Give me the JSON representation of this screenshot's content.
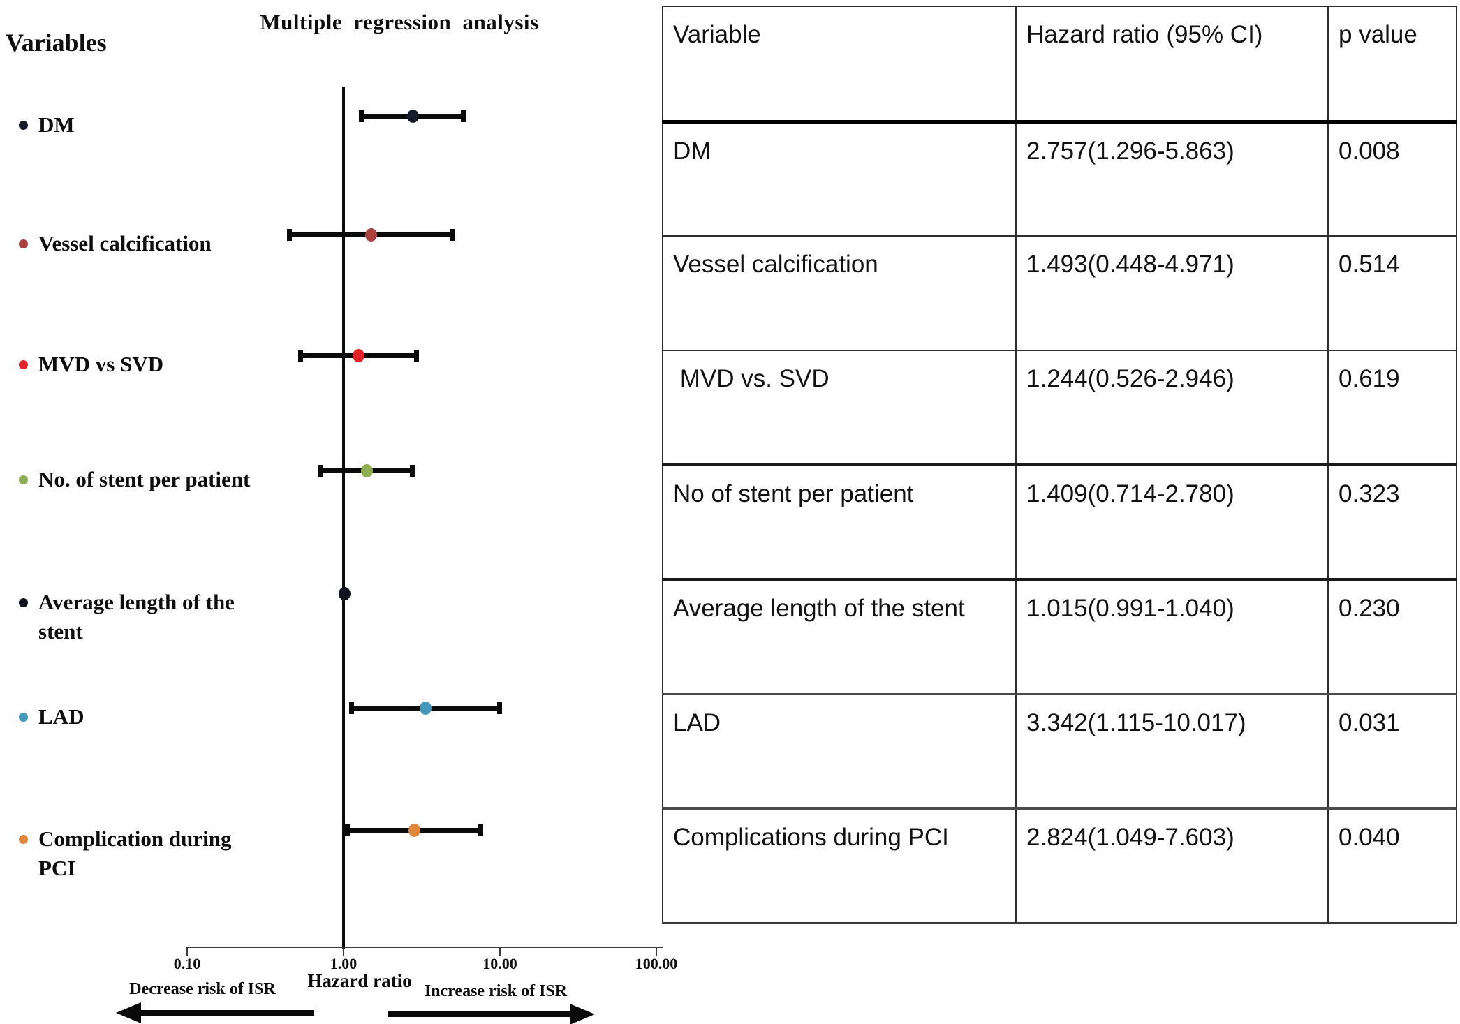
{
  "chart_data": {
    "type": "forest",
    "title": "Multiple regression analysis",
    "left_heading": "Variables",
    "xlabel": "Hazard ratio",
    "x_scale": "log",
    "xlim": [
      0.1,
      100
    ],
    "x_ticks": [
      0.1,
      1.0,
      10.0,
      100.0
    ],
    "x_tick_labels": [
      "0.10",
      "1.00",
      "10.00",
      "100.00"
    ],
    "ref_line": 1.0,
    "decrease_label": "Decrease risk of ISR",
    "increase_label": "Increase risk of ISR",
    "rows": [
      {
        "label_lines": [
          "DM"
        ],
        "hr": 2.757,
        "ci_lo": 1.296,
        "ci_hi": 5.863,
        "color": "#141b29"
      },
      {
        "label_lines": [
          "Vessel calcification"
        ],
        "hr": 1.493,
        "ci_lo": 0.448,
        "ci_hi": 4.971,
        "color": "#a84040"
      },
      {
        "label_lines": [
          "MVD vs SVD"
        ],
        "hr": 1.244,
        "ci_lo": 0.526,
        "ci_hi": 2.946,
        "color": "#e42328"
      },
      {
        "label_lines": [
          "No. of stent per patient"
        ],
        "hr": 1.409,
        "ci_lo": 0.714,
        "ci_hi": 2.78,
        "color": "#8fae52"
      },
      {
        "label_lines": [
          "Average length of the",
          "stent"
        ],
        "hr": 1.015,
        "ci_lo": 0.991,
        "ci_hi": 1.04,
        "color": "#10141c"
      },
      {
        "label_lines": [
          "LAD"
        ],
        "hr": 3.342,
        "ci_lo": 1.115,
        "ci_hi": 10.017,
        "color": "#4499bb"
      },
      {
        "label_lines": [
          "Complication during",
          "PCI"
        ],
        "hr": 2.824,
        "ci_lo": 1.049,
        "ci_hi": 7.603,
        "color": "#e0873c"
      }
    ]
  },
  "table": {
    "headers": [
      "Variable",
      "Hazard ratio (95% CI)",
      "p value"
    ],
    "rows": [
      {
        "variable": "DM",
        "hr_ci": "2.757(1.296-5.863)",
        "p": "0.008"
      },
      {
        "variable": "Vessel calcification",
        "hr_ci": "1.493(0.448-4.971)",
        "p": "0.514"
      },
      {
        "variable": " MVD vs. SVD",
        "hr_ci": "1.244(0.526-2.946)",
        "p": "0.619"
      },
      {
        "variable": "No of stent per patient",
        "hr_ci": "1.409(0.714-2.780)",
        "p": "0.323"
      },
      {
        "variable": "Average length of the stent",
        "hr_ci": "1.015(0.991-1.040)",
        "p": "0.230"
      },
      {
        "variable": "LAD",
        "hr_ci": "3.342(1.115-10.017)",
        "p": "0.031"
      },
      {
        "variable": "Complications during PCI",
        "hr_ci": "2.824(1.049-7.603)",
        "p": "0.040"
      }
    ]
  }
}
